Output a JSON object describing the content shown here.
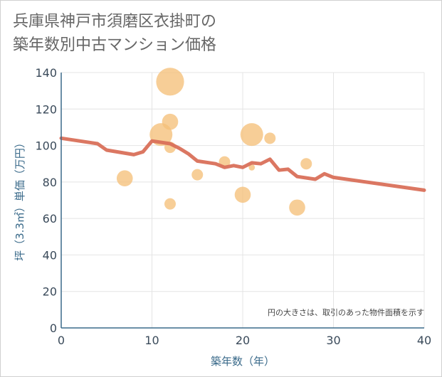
{
  "title_line1": "兵庫県神戸市須磨区衣掛町の",
  "title_line2": "築年数別中古マンション価格",
  "chart_data": {
    "type": "scatter",
    "xlabel": "築年数（年）",
    "ylabel": "坪（3.3㎡）単価（万円）",
    "xlim": [
      0,
      40
    ],
    "ylim": [
      0,
      140
    ],
    "xticks": [
      0,
      10,
      20,
      30,
      40
    ],
    "yticks": [
      0,
      20,
      40,
      60,
      80,
      100,
      120,
      140
    ],
    "grid": true,
    "note": "円の大きさは、取引のあった物件面積を示す",
    "colors": {
      "bubble": "#f5c07a",
      "line": "#d9705a",
      "axis": "#3a6a8a"
    },
    "bubbles": [
      {
        "x": 7,
        "y": 82,
        "size": 2
      },
      {
        "x": 11,
        "y": 106,
        "size": 4
      },
      {
        "x": 12,
        "y": 135,
        "size": 6
      },
      {
        "x": 12,
        "y": 113,
        "size": 2
      },
      {
        "x": 12,
        "y": 99,
        "size": 1
      },
      {
        "x": 12,
        "y": 68,
        "size": 1
      },
      {
        "x": 15,
        "y": 84,
        "size": 1
      },
      {
        "x": 18,
        "y": 91,
        "size": 1
      },
      {
        "x": 20,
        "y": 73,
        "size": 2
      },
      {
        "x": 21,
        "y": 106,
        "size": 4
      },
      {
        "x": 21,
        "y": 88,
        "size": 0.3
      },
      {
        "x": 23,
        "y": 104,
        "size": 1
      },
      {
        "x": 26,
        "y": 66,
        "size": 2
      },
      {
        "x": 27,
        "y": 90,
        "size": 1
      }
    ],
    "trend": [
      [
        0,
        104
      ],
      [
        4,
        101
      ],
      [
        5,
        97.5
      ],
      [
        8,
        95
      ],
      [
        9,
        96.5
      ],
      [
        10,
        102.5
      ],
      [
        12,
        101
      ],
      [
        13,
        98.5
      ],
      [
        14,
        95.5
      ],
      [
        15,
        91.5
      ],
      [
        17,
        90
      ],
      [
        18,
        88
      ],
      [
        19,
        89
      ],
      [
        20,
        88
      ],
      [
        21,
        90.5
      ],
      [
        22,
        90
      ],
      [
        23,
        92.5
      ],
      [
        24,
        86.5
      ],
      [
        25,
        87
      ],
      [
        26,
        83
      ],
      [
        28,
        81.5
      ],
      [
        29,
        84.5
      ],
      [
        30,
        82.5
      ],
      [
        40,
        75.5
      ]
    ]
  }
}
